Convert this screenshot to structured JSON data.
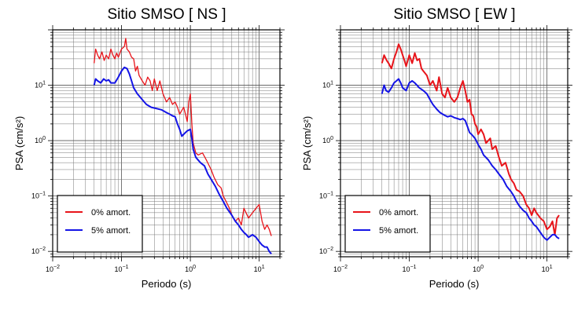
{
  "chart_data": [
    {
      "type": "line",
      "title": "Sitio SMSO [ NS ]",
      "xlabel": "Periodo (s)",
      "ylabel": "PSA (cm/s²)",
      "xscale": "log",
      "yscale": "log",
      "xlim": [
        0.01,
        20
      ],
      "ylim": [
        0.008,
        100
      ],
      "x_ticks": [
        {
          "base": "10",
          "exp": "−2"
        },
        {
          "base": "10",
          "exp": "−1"
        },
        {
          "base": "10",
          "exp": "0"
        },
        {
          "base": "10",
          "exp": "1"
        }
      ],
      "y_ticks": [
        {
          "base": "10",
          "exp": "−2"
        },
        {
          "base": "10",
          "exp": "−1"
        },
        {
          "base": "10",
          "exp": "0"
        },
        {
          "base": "10",
          "exp": "1"
        }
      ],
      "grid": true,
      "legend_position": "bottom-left",
      "series": [
        {
          "name": "0% amort.",
          "color": "#e8141a",
          "points": [
            [
              0.04,
              25
            ],
            [
              0.042,
              45
            ],
            [
              0.045,
              35
            ],
            [
              0.048,
              30
            ],
            [
              0.052,
              40
            ],
            [
              0.056,
              28
            ],
            [
              0.06,
              35
            ],
            [
              0.065,
              30
            ],
            [
              0.07,
              45
            ],
            [
              0.075,
              35
            ],
            [
              0.08,
              30
            ],
            [
              0.085,
              38
            ],
            [
              0.09,
              32
            ],
            [
              0.1,
              45
            ],
            [
              0.11,
              50
            ],
            [
              0.115,
              70
            ],
            [
              0.12,
              45
            ],
            [
              0.13,
              40
            ],
            [
              0.14,
              32
            ],
            [
              0.15,
              30
            ],
            [
              0.16,
              18
            ],
            [
              0.17,
              22
            ],
            [
              0.18,
              15
            ],
            [
              0.2,
              12
            ],
            [
              0.22,
              10
            ],
            [
              0.24,
              14
            ],
            [
              0.26,
              12
            ],
            [
              0.28,
              8
            ],
            [
              0.3,
              13
            ],
            [
              0.33,
              8
            ],
            [
              0.36,
              12
            ],
            [
              0.4,
              7
            ],
            [
              0.45,
              5
            ],
            [
              0.5,
              6
            ],
            [
              0.55,
              4.5
            ],
            [
              0.6,
              5
            ],
            [
              0.65,
              4
            ],
            [
              0.7,
              3
            ],
            [
              0.75,
              3.5
            ],
            [
              0.8,
              4
            ],
            [
              0.85,
              3
            ],
            [
              0.9,
              2.2
            ],
            [
              0.95,
              5
            ],
            [
              1.0,
              7
            ],
            [
              1.05,
              2
            ],
            [
              1.1,
              0.9
            ],
            [
              1.2,
              0.6
            ],
            [
              1.3,
              0.55
            ],
            [
              1.5,
              0.6
            ],
            [
              1.7,
              0.45
            ],
            [
              2,
              0.3
            ],
            [
              2.2,
              0.22
            ],
            [
              2.5,
              0.16
            ],
            [
              2.8,
              0.14
            ],
            [
              3,
              0.1
            ],
            [
              3.3,
              0.08
            ],
            [
              3.7,
              0.06
            ],
            [
              4,
              0.045
            ],
            [
              4.5,
              0.035
            ],
            [
              5,
              0.04
            ],
            [
              5.5,
              0.03
            ],
            [
              6,
              0.06
            ],
            [
              7,
              0.04
            ],
            [
              8,
              0.05
            ],
            [
              9,
              0.06
            ],
            [
              10,
              0.07
            ],
            [
              11,
              0.035
            ],
            [
              12,
              0.025
            ],
            [
              13,
              0.03
            ],
            [
              14,
              0.025
            ],
            [
              15,
              0.019
            ]
          ]
        },
        {
          "name": "5% amort.",
          "color": "#1414e6",
          "points": [
            [
              0.04,
              10
            ],
            [
              0.042,
              13
            ],
            [
              0.045,
              12
            ],
            [
              0.05,
              11
            ],
            [
              0.055,
              13
            ],
            [
              0.06,
              12
            ],
            [
              0.065,
              12.5
            ],
            [
              0.07,
              11
            ],
            [
              0.08,
              11
            ],
            [
              0.09,
              14
            ],
            [
              0.1,
              18
            ],
            [
              0.11,
              21
            ],
            [
              0.12,
              20
            ],
            [
              0.13,
              16
            ],
            [
              0.14,
              12
            ],
            [
              0.15,
              9
            ],
            [
              0.17,
              7
            ],
            [
              0.2,
              5.5
            ],
            [
              0.23,
              4.5
            ],
            [
              0.27,
              4
            ],
            [
              0.32,
              3.8
            ],
            [
              0.38,
              3.6
            ],
            [
              0.45,
              3.2
            ],
            [
              0.5,
              3
            ],
            [
              0.55,
              2.8
            ],
            [
              0.6,
              2.7
            ],
            [
              0.65,
              2
            ],
            [
              0.7,
              1.6
            ],
            [
              0.75,
              1.2
            ],
            [
              0.8,
              1.3
            ],
            [
              0.9,
              1.5
            ],
            [
              1.0,
              1.6
            ],
            [
              1.05,
              1.1
            ],
            [
              1.1,
              0.7
            ],
            [
              1.2,
              0.5
            ],
            [
              1.4,
              0.4
            ],
            [
              1.6,
              0.35
            ],
            [
              1.8,
              0.25
            ],
            [
              2,
              0.2
            ],
            [
              2.3,
              0.15
            ],
            [
              2.6,
              0.11
            ],
            [
              3,
              0.08
            ],
            [
              3.4,
              0.06
            ],
            [
              4,
              0.045
            ],
            [
              4.5,
              0.035
            ],
            [
              5,
              0.03
            ],
            [
              5.5,
              0.025
            ],
            [
              6,
              0.022
            ],
            [
              6.5,
              0.02
            ],
            [
              7,
              0.018
            ],
            [
              8,
              0.02
            ],
            [
              9,
              0.018
            ],
            [
              10,
              0.015
            ],
            [
              11,
              0.013
            ],
            [
              12,
              0.012
            ],
            [
              13,
              0.012
            ],
            [
              14,
              0.01
            ],
            [
              15,
              0.009
            ]
          ]
        }
      ]
    },
    {
      "type": "line",
      "title": "Sitio SMSO [ EW ]",
      "xlabel": "Periodo (s)",
      "ylabel": "PSA (cm/s²)",
      "xscale": "log",
      "yscale": "log",
      "xlim": [
        0.01,
        20
      ],
      "ylim": [
        0.008,
        100
      ],
      "x_ticks": [
        {
          "base": "10",
          "exp": "−2"
        },
        {
          "base": "10",
          "exp": "−1"
        },
        {
          "base": "10",
          "exp": "0"
        },
        {
          "base": "10",
          "exp": "1"
        }
      ],
      "y_ticks": [
        {
          "base": "10",
          "exp": "−2"
        },
        {
          "base": "10",
          "exp": "−1"
        },
        {
          "base": "10",
          "exp": "0"
        },
        {
          "base": "10",
          "exp": "1"
        }
      ],
      "grid": true,
      "legend_position": "bottom-left",
      "series": [
        {
          "name": "0% amort.",
          "color": "#e8141a",
          "points": [
            [
              0.04,
              25
            ],
            [
              0.043,
              35
            ],
            [
              0.047,
              28
            ],
            [
              0.05,
              25
            ],
            [
              0.055,
              20
            ],
            [
              0.06,
              30
            ],
            [
              0.065,
              40
            ],
            [
              0.07,
              55
            ],
            [
              0.075,
              45
            ],
            [
              0.08,
              35
            ],
            [
              0.085,
              28
            ],
            [
              0.09,
              22
            ],
            [
              0.1,
              35
            ],
            [
              0.11,
              25
            ],
            [
              0.12,
              38
            ],
            [
              0.13,
              28
            ],
            [
              0.14,
              30
            ],
            [
              0.15,
              20
            ],
            [
              0.16,
              18
            ],
            [
              0.18,
              15
            ],
            [
              0.2,
              10
            ],
            [
              0.22,
              12
            ],
            [
              0.25,
              8
            ],
            [
              0.27,
              14
            ],
            [
              0.3,
              7
            ],
            [
              0.33,
              6
            ],
            [
              0.36,
              9
            ],
            [
              0.4,
              6
            ],
            [
              0.45,
              5
            ],
            [
              0.5,
              6
            ],
            [
              0.55,
              9
            ],
            [
              0.6,
              12
            ],
            [
              0.65,
              8
            ],
            [
              0.7,
              5
            ],
            [
              0.75,
              5.5
            ],
            [
              0.8,
              3
            ],
            [
              0.85,
              2.8
            ],
            [
              0.9,
              2
            ],
            [
              0.95,
              1.8
            ],
            [
              1.0,
              1.3
            ],
            [
              1.1,
              1.6
            ],
            [
              1.2,
              1.3
            ],
            [
              1.3,
              0.9
            ],
            [
              1.5,
              1.1
            ],
            [
              1.6,
              0.7
            ],
            [
              1.8,
              0.8
            ],
            [
              2,
              0.5
            ],
            [
              2.2,
              0.35
            ],
            [
              2.5,
              0.4
            ],
            [
              2.8,
              0.25
            ],
            [
              3,
              0.2
            ],
            [
              3.3,
              0.17
            ],
            [
              3.6,
              0.13
            ],
            [
              4,
              0.12
            ],
            [
              4.5,
              0.1
            ],
            [
              5,
              0.07
            ],
            [
              5.5,
              0.06
            ],
            [
              6,
              0.045
            ],
            [
              6.5,
              0.06
            ],
            [
              7,
              0.05
            ],
            [
              8,
              0.04
            ],
            [
              9,
              0.035
            ],
            [
              10,
              0.025
            ],
            [
              11,
              0.028
            ],
            [
              12,
              0.035
            ],
            [
              13,
              0.02
            ],
            [
              14,
              0.04
            ],
            [
              15,
              0.045
            ]
          ]
        },
        {
          "name": "5% amort.",
          "color": "#1414e6",
          "points": [
            [
              0.04,
              7
            ],
            [
              0.043,
              10
            ],
            [
              0.046,
              8
            ],
            [
              0.05,
              7.5
            ],
            [
              0.055,
              9
            ],
            [
              0.06,
              11
            ],
            [
              0.065,
              12
            ],
            [
              0.07,
              13
            ],
            [
              0.075,
              11
            ],
            [
              0.08,
              9
            ],
            [
              0.09,
              8
            ],
            [
              0.1,
              11
            ],
            [
              0.11,
              12
            ],
            [
              0.12,
              11
            ],
            [
              0.14,
              9
            ],
            [
              0.16,
              8
            ],
            [
              0.18,
              7
            ],
            [
              0.2,
              5.5
            ],
            [
              0.22,
              4.5
            ],
            [
              0.25,
              3.7
            ],
            [
              0.28,
              3.2
            ],
            [
              0.32,
              2.9
            ],
            [
              0.36,
              2.7
            ],
            [
              0.4,
              2.8
            ],
            [
              0.45,
              2.6
            ],
            [
              0.5,
              2.5
            ],
            [
              0.55,
              2.4
            ],
            [
              0.6,
              2.5
            ],
            [
              0.65,
              2.3
            ],
            [
              0.7,
              1.8
            ],
            [
              0.75,
              1.4
            ],
            [
              0.8,
              1.3
            ],
            [
              0.9,
              1.1
            ],
            [
              1.0,
              0.85
            ],
            [
              1.1,
              0.7
            ],
            [
              1.2,
              0.55
            ],
            [
              1.4,
              0.45
            ],
            [
              1.6,
              0.35
            ],
            [
              1.8,
              0.3
            ],
            [
              2,
              0.25
            ],
            [
              2.3,
              0.2
            ],
            [
              2.6,
              0.15
            ],
            [
              3,
              0.12
            ],
            [
              3.3,
              0.1
            ],
            [
              3.6,
              0.08
            ],
            [
              4,
              0.065
            ],
            [
              4.5,
              0.055
            ],
            [
              5,
              0.05
            ],
            [
              5.5,
              0.04
            ],
            [
              6,
              0.035
            ],
            [
              6.5,
              0.03
            ],
            [
              7,
              0.028
            ],
            [
              8,
              0.022
            ],
            [
              9,
              0.018
            ],
            [
              10,
              0.016
            ],
            [
              11,
              0.018
            ],
            [
              12,
              0.02
            ],
            [
              13,
              0.02
            ],
            [
              14,
              0.018
            ],
            [
              15,
              0.017
            ]
          ]
        }
      ]
    }
  ]
}
